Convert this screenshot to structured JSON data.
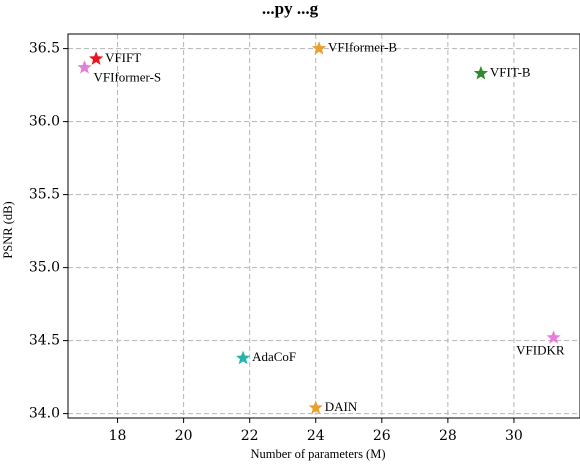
{
  "chart_data": {
    "type": "scatter",
    "title": "...py ...g",
    "xlabel": "Number of parameters (M)",
    "ylabel": "PSNR (dB)",
    "xlim": [
      16.5,
      32.0
    ],
    "ylim": [
      33.97,
      36.6
    ],
    "xticks": [
      18,
      20,
      22,
      24,
      26,
      28,
      30
    ],
    "yticks": [
      34.0,
      34.5,
      35.0,
      35.5,
      36.0,
      36.5
    ],
    "xtick_labels": [
      "18",
      "20",
      "22",
      "24",
      "26",
      "28",
      "30"
    ],
    "ytick_labels": [
      "34.0",
      "34.5",
      "35.0",
      "35.5",
      "36.0",
      "36.5"
    ],
    "grid": true,
    "marker": "star",
    "points": [
      {
        "label": "VFIFT",
        "x": 17.35,
        "y": 36.43,
        "color": "#e8141e",
        "label_pos": "right"
      },
      {
        "label": "VFIformer-S",
        "x": 17.0,
        "y": 36.37,
        "color": "#e67fdc",
        "label_pos": "below-right"
      },
      {
        "label": "VFIformer-B",
        "x": 24.1,
        "y": 36.5,
        "color": "#e8a12f",
        "label_pos": "right"
      },
      {
        "label": "VFIT-B",
        "x": 29.0,
        "y": 36.33,
        "color": "#2e8b2e",
        "label_pos": "right"
      },
      {
        "label": "VFIDKR",
        "x": 31.2,
        "y": 34.52,
        "color": "#e67fdc",
        "label_pos": "below-left"
      },
      {
        "label": "AdaCoF",
        "x": 21.8,
        "y": 34.38,
        "color": "#26b3ad",
        "label_pos": "right"
      },
      {
        "label": "DAIN",
        "x": 24.0,
        "y": 34.04,
        "color": "#e8a12f",
        "label_pos": "right"
      }
    ]
  }
}
